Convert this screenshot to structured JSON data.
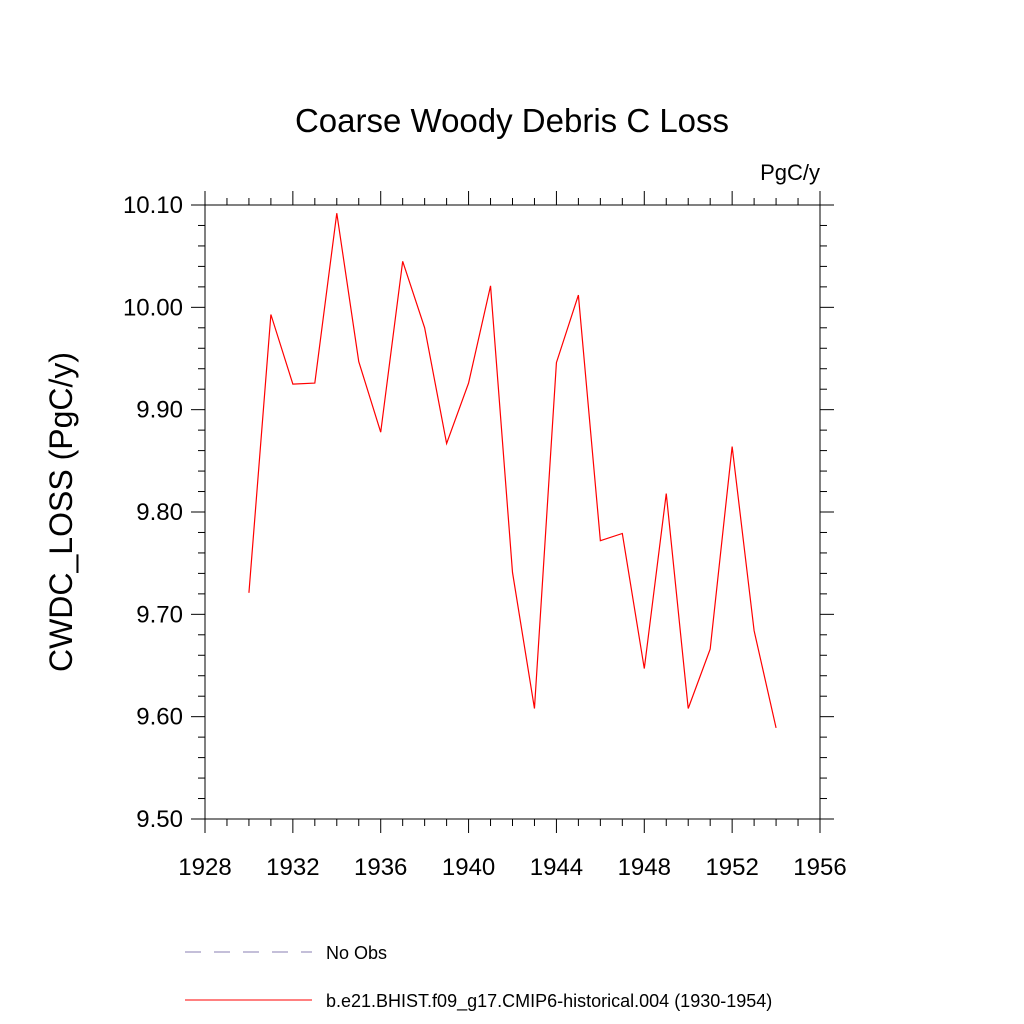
{
  "chart_data": {
    "type": "line",
    "title": "Coarse Woody Debris C Loss",
    "units_label": "PgC/y",
    "ylabel": "CWDC_LOSS  (PgC/y)",
    "xlabel": "",
    "xlim": [
      1928,
      1956
    ],
    "ylim": [
      9.5,
      10.1
    ],
    "x_ticks": [
      "1928",
      "1932",
      "1936",
      "1940",
      "1944",
      "1948",
      "1952",
      "1956"
    ],
    "y_ticks": [
      "9.50",
      "9.60",
      "9.70",
      "9.80",
      "9.90",
      "10.00",
      "10.10"
    ],
    "grid": false,
    "legend_position": "bottom",
    "series": [
      {
        "name": "b.e21.BHIST.f09_g17.CMIP6-historical.004 (1930-1954)",
        "color": "#ff0000",
        "dash": "solid",
        "x": [
          1930,
          1931,
          1932,
          1933,
          1934,
          1935,
          1936,
          1937,
          1938,
          1939,
          1940,
          1941,
          1942,
          1943,
          1944,
          1945,
          1946,
          1947,
          1948,
          1949,
          1950,
          1951,
          1952,
          1953,
          1954
        ],
        "y": [
          9.721,
          9.993,
          9.925,
          9.926,
          10.092,
          9.947,
          9.878,
          10.045,
          9.98,
          9.867,
          9.926,
          10.021,
          9.741,
          9.608,
          9.946,
          10.012,
          9.772,
          9.779,
          9.647,
          9.818,
          9.608,
          9.666,
          9.864,
          9.684,
          9.589
        ]
      }
    ],
    "legend": [
      {
        "label": "No Obs",
        "color": "#8a7fb3",
        "dash": "dashed"
      },
      {
        "label": "b.e21.BHIST.f09_g17.CMIP6-historical.004 (1930-1954)",
        "color": "#ff0000",
        "dash": "solid"
      }
    ]
  }
}
